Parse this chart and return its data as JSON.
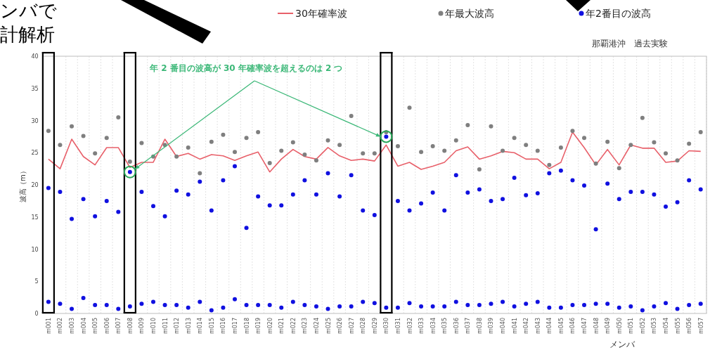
{
  "chart_data": {
    "type": "scatter",
    "subtitle": "那覇港沖　過去実験",
    "xlabel": "メンバ",
    "ylabel": "波高（m）",
    "annotations": [
      {
        "text": "年 2 番目の波高が 30 年確率波を超えるのは 2 つ",
        "x": "m030",
        "y": 27.5
      },
      "ンバで",
      "計解析"
    ],
    "categories": [
      "m001",
      "m002",
      "m003",
      "m004",
      "m005",
      "m006",
      "m007",
      "m008",
      "m009",
      "m010",
      "m011",
      "m012",
      "m013",
      "m014",
      "m015",
      "m016",
      "m017",
      "m018",
      "m019",
      "m020",
      "m021",
      "m022",
      "m023",
      "m024",
      "m025",
      "m026",
      "m027",
      "m028",
      "m029",
      "m030",
      "m031",
      "m032",
      "m033",
      "m034",
      "m035",
      "m036",
      "m037",
      "m038",
      "m039",
      "m040",
      "m041",
      "m042",
      "m043",
      "m044",
      "m045",
      "m046",
      "m047",
      "m048",
      "m049",
      "m050",
      "m051",
      "m052",
      "m053",
      "m054",
      "m055",
      "m056",
      "m057"
    ],
    "ylim": [
      0,
      40
    ],
    "yticks": [
      0,
      5,
      10,
      15,
      20,
      25,
      30,
      35,
      40
    ],
    "grid": "x",
    "legend": "top",
    "series": [
      {
        "name": "30年確率波",
        "type": "line",
        "marker": "none",
        "color": "#e8606a",
        "values": [
          24.0,
          22.5,
          27.1,
          24.4,
          23.1,
          25.8,
          25.8,
          22.7,
          23.5,
          23.5,
          27.1,
          24.4,
          24.9,
          24.0,
          24.7,
          24.5,
          23.8,
          24.5,
          25.1,
          22.0,
          24.0,
          25.5,
          24.4,
          24.0,
          25.8,
          24.5,
          23.8,
          24.0,
          23.7,
          26.2,
          22.9,
          23.5,
          22.4,
          22.9,
          23.5,
          25.3,
          25.9,
          24.0,
          24.5,
          25.2,
          25.0,
          24.0,
          24.0,
          22.5,
          23.5,
          28.2,
          25.8,
          23.1,
          25.5,
          23.1,
          26.2,
          25.7,
          25.7,
          23.5,
          23.7,
          25.3,
          25.2
        ]
      },
      {
        "name": "年最大波高",
        "marker": "circle",
        "color": "#7f7f7f",
        "x": [
          "m001",
          "m002",
          "m003",
          "m004",
          "m005",
          "m006",
          "m007",
          "m008",
          "m009",
          "m010",
          "m011",
          "m012",
          "m013",
          "m014",
          "m015",
          "m016",
          "m017",
          "m018",
          "m019",
          "m020",
          "m021",
          "m022",
          "m023",
          "m024",
          "m025",
          "m026",
          "m027",
          "m028",
          "m029",
          "m030",
          "m031",
          "m032",
          "m033",
          "m034",
          "m035",
          "m036",
          "m037",
          "m038",
          "m039",
          "m040",
          "m041",
          "m042",
          "m043",
          "m044",
          "m045",
          "m046",
          "m047",
          "m048",
          "m049",
          "m050",
          "m051",
          "m052",
          "m053",
          "m054",
          "m055",
          "m056",
          "m057"
        ],
        "values": [
          28.4,
          26.2,
          29.1,
          27.6,
          24.9,
          27.3,
          30.5,
          23.6,
          26.5,
          24.4,
          26.2,
          24.4,
          25.8,
          21.8,
          26.7,
          27.8,
          25.1,
          27.3,
          28.2,
          23.4,
          25.3,
          26.6,
          24.7,
          23.8,
          26.9,
          26.2,
          30.7,
          24.9,
          24.9,
          28.2,
          26.0,
          32.0,
          25.1,
          26.0,
          25.3,
          26.9,
          29.3,
          22.4,
          29.1,
          25.3,
          27.3,
          26.2,
          25.3,
          23.1,
          25.8,
          28.4,
          27.3,
          23.3,
          26.7,
          22.6,
          26.2,
          30.4,
          26.6,
          24.9,
          23.8,
          26.4,
          28.2
        ]
      },
      {
        "name": "年2番目の波高",
        "marker": "circle",
        "color": "#1010e0",
        "x": [
          "m001",
          "m002",
          "m003",
          "m004",
          "m005",
          "m006",
          "m007",
          "m008",
          "m009",
          "m010",
          "m011",
          "m012",
          "m013",
          "m014",
          "m015",
          "m016",
          "m017",
          "m018",
          "m019",
          "m020",
          "m021",
          "m022",
          "m023",
          "m024",
          "m025",
          "m026",
          "m027",
          "m028",
          "m029",
          "m030",
          "m031",
          "m032",
          "m033",
          "m034",
          "m035",
          "m036",
          "m037",
          "m038",
          "m039",
          "m040",
          "m041",
          "m042",
          "m043",
          "m044",
          "m045",
          "m046",
          "m047",
          "m048",
          "m049",
          "m050",
          "m051",
          "m052",
          "m053",
          "m054",
          "m055",
          "m056",
          "m057",
          "m001",
          "m002",
          "m003",
          "m004",
          "m005",
          "m006",
          "m007",
          "m008",
          "m009",
          "m010",
          "m011",
          "m012",
          "m013",
          "m014",
          "m015",
          "m016",
          "m017",
          "m018",
          "m019",
          "m020",
          "m021",
          "m022",
          "m023",
          "m024",
          "m025",
          "m026",
          "m027",
          "m028",
          "m029",
          "m030",
          "m031",
          "m032",
          "m033",
          "m034",
          "m035",
          "m036",
          "m037",
          "m038",
          "m039",
          "m040",
          "m041",
          "m042",
          "m043",
          "m044",
          "m045",
          "m046",
          "m047",
          "m048",
          "m049",
          "m050",
          "m051",
          "m052",
          "m053",
          "m054",
          "m055",
          "m056",
          "m057"
        ],
        "values": [
          19.5,
          18.9,
          14.7,
          17.8,
          15.1,
          17.5,
          15.8,
          22.0,
          18.9,
          16.7,
          15.1,
          19.1,
          18.5,
          20.5,
          16.0,
          20.7,
          22.9,
          13.3,
          18.2,
          16.8,
          16.8,
          18.5,
          20.7,
          18.5,
          21.8,
          18.2,
          21.5,
          16.0,
          15.3,
          27.5,
          17.5,
          16.0,
          17.1,
          18.8,
          16.0,
          21.5,
          18.8,
          19.3,
          17.5,
          17.8,
          21.1,
          18.4,
          18.7,
          21.8,
          22.2,
          20.7,
          19.9,
          13.1,
          20.2,
          17.8,
          18.9,
          18.9,
          18.5,
          16.6,
          17.3,
          20.7,
          19.3,
          1.8,
          1.5,
          0.7,
          2.4,
          1.3,
          1.3,
          0.7,
          1.1,
          1.5,
          1.8,
          1.3,
          1.3,
          0.9,
          1.8,
          0.5,
          0.9,
          2.2,
          1.3,
          1.3,
          1.3,
          0.9,
          1.8,
          1.3,
          1.1,
          0.7,
          1.1,
          1.1,
          1.8,
          1.6,
          0.9,
          0.9,
          1.6,
          1.1,
          1.1,
          1.1,
          1.8,
          1.3,
          1.3,
          1.5,
          1.8,
          1.1,
          1.5,
          1.8,
          0.9,
          0.9,
          1.3,
          1.3,
          1.5,
          1.5,
          0.9,
          1.1,
          0.5,
          1.1,
          1.6,
          0.7,
          1.3,
          1.5
        ]
      }
    ]
  }
}
